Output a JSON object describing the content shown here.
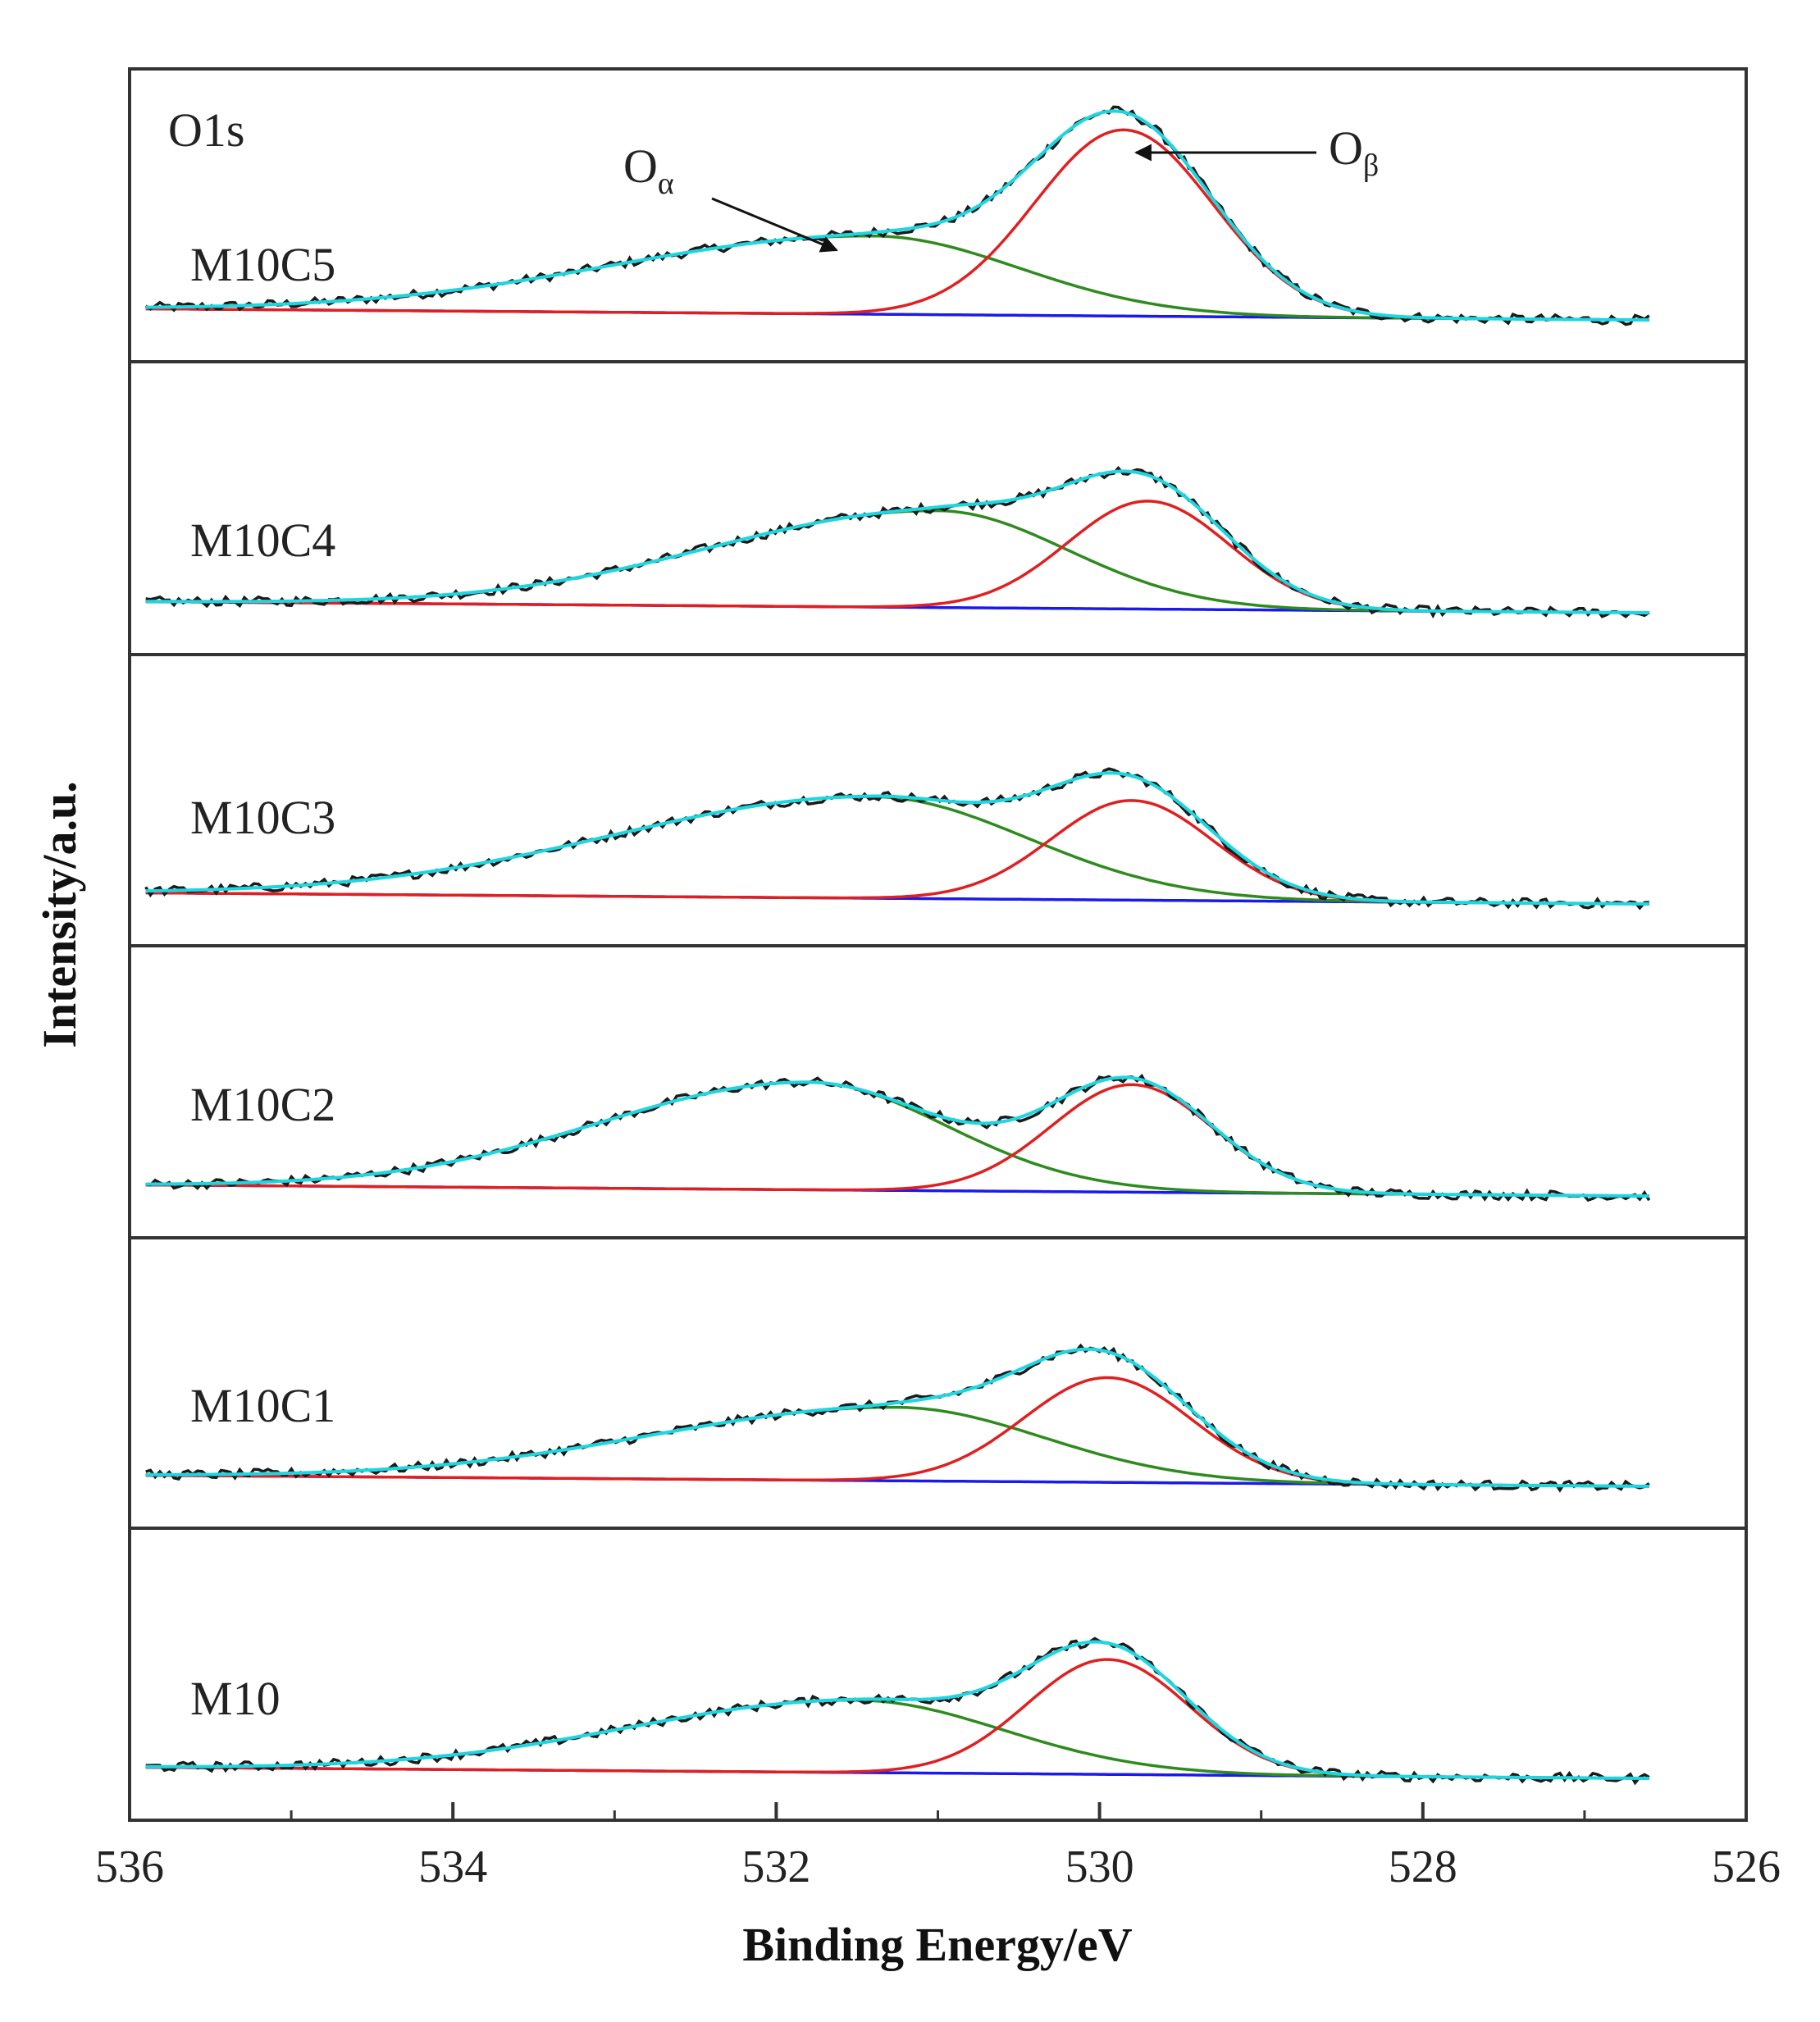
{
  "chart_data": {
    "type": "line",
    "title": "",
    "panel_annotation": "O1s",
    "xlabel": "Binding Energy/eV",
    "ylabel": "Intensity/a.u.",
    "xlim": [
      536,
      526
    ],
    "x_reversed": true,
    "x_ticks": [
      536,
      534,
      532,
      530,
      528,
      526
    ],
    "x_minor_ticks": [
      535,
      533,
      531,
      529,
      527
    ],
    "annotations": [
      {
        "text": "O",
        "subscript": "α",
        "points_to": "green Oα component",
        "x": 531.7
      },
      {
        "text": "O",
        "subscript": "β",
        "points_to": "red Oβ component",
        "x": 529.8
      }
    ],
    "legend": "none",
    "colors": {
      "experimental": "#1a1a1a",
      "envelope": "#1ed6e0",
      "o_alpha": "#2e8b1e",
      "o_beta": "#e02020",
      "baseline": "#1a1aee"
    },
    "series_types": [
      "experimental",
      "envelope",
      "O_alpha",
      "O_beta",
      "baseline"
    ],
    "panels": [
      {
        "label": "M10C5",
        "o_beta": {
          "center": 529.85,
          "height": 1.0,
          "sigma": 0.55
        },
        "o_alpha": {
          "center": 531.4,
          "height": 0.42,
          "sigma_left": 1.6,
          "sigma_right": 0.9
        },
        "baseline_start": 0.02,
        "baseline_end": -0.04
      },
      {
        "label": "M10C4",
        "o_beta": {
          "center": 529.7,
          "height": 0.58,
          "sigma": 0.5
        },
        "o_alpha": {
          "center": 531.0,
          "height": 0.52,
          "sigma_left": 1.4,
          "sigma_right": 0.8
        },
        "baseline_start": 0.02,
        "baseline_end": -0.04
      },
      {
        "label": "M10C3",
        "o_beta": {
          "center": 529.8,
          "height": 0.54,
          "sigma": 0.5
        },
        "o_alpha": {
          "center": 531.4,
          "height": 0.55,
          "sigma_left": 1.6,
          "sigma_right": 0.95
        },
        "baseline_start": 0.02,
        "baseline_end": -0.04
      },
      {
        "label": "M10C2",
        "o_beta": {
          "center": 529.8,
          "height": 0.58,
          "sigma": 0.5
        },
        "o_alpha": {
          "center": 531.8,
          "height": 0.58,
          "sigma_left": 1.3,
          "sigma_right": 0.85
        },
        "baseline_start": 0.02,
        "baseline_end": -0.04
      },
      {
        "label": "M10C1",
        "o_beta": {
          "center": 529.95,
          "height": 0.57,
          "sigma": 0.52
        },
        "o_alpha": {
          "center": 531.25,
          "height": 0.4,
          "sigma_left": 1.5,
          "sigma_right": 0.9
        },
        "baseline_start": 0.02,
        "baseline_end": -0.04
      },
      {
        "label": "M10",
        "o_beta": {
          "center": 529.95,
          "height": 0.62,
          "sigma": 0.5
        },
        "o_alpha": {
          "center": 531.5,
          "height": 0.39,
          "sigma_left": 1.4,
          "sigma_right": 0.9
        },
        "baseline_start": 0.02,
        "baseline_end": -0.04
      }
    ]
  }
}
